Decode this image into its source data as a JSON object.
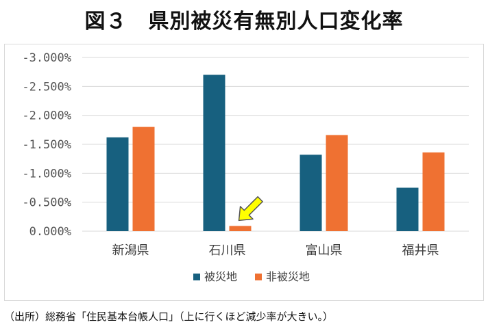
{
  "title": "図３　県別被災有無別人口変化率",
  "source": "（出所）総務省「住民基本台帳人口」（上に行くほど減少率が大きい。）",
  "colors": {
    "series1": "#17607f",
    "series2": "#ef7132",
    "grid": "#d9d9d9",
    "arrow_fill": "#ffff00",
    "arrow_stroke": "#555555"
  },
  "arrow_icon": "arrow-pointer-icon",
  "chart_data": {
    "type": "bar",
    "categories": [
      "新潟県",
      "石川県",
      "富山県",
      "福井県"
    ],
    "series": [
      {
        "name": "被災地",
        "values": [
          -1.62,
          -2.7,
          -1.32,
          -0.75
        ]
      },
      {
        "name": "非被災地",
        "values": [
          -1.8,
          -0.09,
          -1.66,
          -1.36
        ]
      }
    ],
    "ylim": [
      0,
      -3.0
    ],
    "yticks": [
      {
        "value": 0,
        "label": "0.000%"
      },
      {
        "value": -0.5,
        "label": "-0.500%"
      },
      {
        "value": -1.0,
        "label": "-1.000%"
      },
      {
        "value": -1.5,
        "label": "-1.500%"
      },
      {
        "value": -2.0,
        "label": "-2.000%"
      },
      {
        "value": -2.5,
        "label": "-2.500%"
      },
      {
        "value": -3.0,
        "label": "-3.000%"
      }
    ],
    "y_axis_reversed": true,
    "grid": true,
    "legend_position": "bottom"
  }
}
